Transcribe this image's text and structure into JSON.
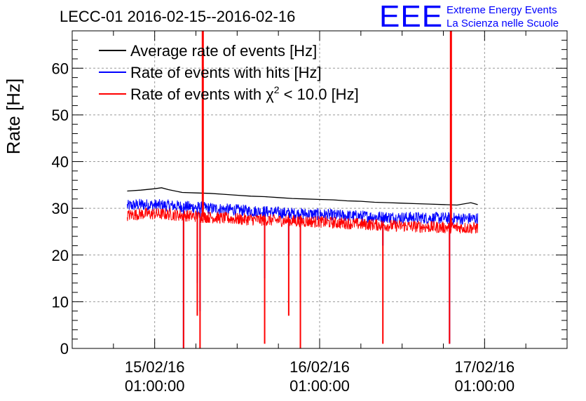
{
  "chart_data": {
    "type": "line",
    "title": "LECC-01 2016-02-15--2016-02-16",
    "ylabel": "Rate [Hz]",
    "xlabel": "",
    "ylim": [
      0,
      68
    ],
    "yticks": [
      0,
      10,
      20,
      30,
      40,
      50,
      60
    ],
    "xlim_hours": [
      -12.0,
      60.0
    ],
    "xticks": [
      {
        "hour": 0,
        "date": "15/02/16",
        "time": "01:00:00"
      },
      {
        "hour": 24,
        "date": "16/02/16",
        "time": "01:00:00"
      },
      {
        "hour": 48,
        "date": "17/02/16",
        "time": "01:00:00"
      }
    ],
    "grid": true,
    "legend_position": "top-left",
    "legend": [
      {
        "prefix": "Average rate of events [Hz]",
        "sup": "",
        "suffix": "",
        "color": "#000000"
      },
      {
        "prefix": "Rate of events with hits [Hz]",
        "sup": "",
        "suffix": "",
        "color": "#0000ff"
      },
      {
        "prefix": "Rate of events with χ",
        "sup": "2",
        "suffix": " < 10.0 [Hz]",
        "color": "#ff0000"
      }
    ],
    "series": [
      {
        "name": "Average rate of events [Hz]",
        "color": "#000000",
        "x_hours": [
          -4,
          -2,
          0,
          1,
          2,
          4,
          6,
          8,
          10,
          12,
          14,
          16,
          18,
          20,
          22,
          24,
          26,
          28,
          30,
          32,
          34,
          36,
          38,
          40,
          42,
          44,
          46,
          46.5,
          47
        ],
        "values": [
          33.7,
          33.9,
          34.2,
          34.4,
          34.0,
          33.4,
          33.3,
          33.2,
          33.0,
          32.8,
          32.6,
          32.5,
          32.3,
          32.1,
          32.0,
          31.9,
          31.8,
          31.6,
          31.5,
          31.3,
          31.2,
          31.1,
          31.0,
          30.9,
          30.8,
          30.7,
          31.2,
          31.0,
          30.8
        ]
      },
      {
        "name": "Rate of events with hits [Hz]",
        "color": "#0000ff",
        "x_hours": [
          -4,
          -2,
          0,
          2,
          4,
          6,
          8,
          10,
          12,
          14,
          16,
          18,
          20,
          22,
          24,
          26,
          28,
          30,
          32,
          34,
          36,
          38,
          40,
          42,
          44,
          46,
          47
        ],
        "values": [
          30.5,
          30.8,
          30.7,
          30.6,
          30.4,
          30.2,
          30.0,
          29.8,
          29.6,
          29.4,
          29.3,
          29.1,
          28.9,
          28.8,
          28.7,
          28.5,
          28.4,
          28.3,
          28.2,
          28.1,
          28.0,
          28.0,
          27.9,
          27.9,
          27.8,
          27.8,
          27.8
        ],
        "dropouts": [
          {
            "hour": 4.2,
            "min": 0
          },
          {
            "hour": 6.2,
            "min": 14
          },
          {
            "hour": 6.6,
            "min": 8
          },
          {
            "hour": 16.0,
            "min": 15
          },
          {
            "hour": 19.5,
            "min": 20
          },
          {
            "hour": 21.2,
            "min": 21
          },
          {
            "hour": 33.2,
            "min": 22
          },
          {
            "hour": 42.9,
            "min": 1
          }
        ]
      },
      {
        "name": "Rate of events with χ2 < 10.0 [Hz]",
        "color": "#ff0000",
        "x_hours": [
          -4,
          -2,
          0,
          2,
          4,
          6,
          8,
          10,
          12,
          14,
          16,
          18,
          20,
          22,
          24,
          26,
          28,
          30,
          32,
          34,
          36,
          38,
          40,
          42,
          44,
          46,
          47
        ],
        "values": [
          28.5,
          28.8,
          28.8,
          28.7,
          28.5,
          28.3,
          28.1,
          27.9,
          27.7,
          27.6,
          27.5,
          27.4,
          27.3,
          27.2,
          27.1,
          26.9,
          26.8,
          26.6,
          26.5,
          26.3,
          26.2,
          26.1,
          26.0,
          25.9,
          25.9,
          25.8,
          25.8
        ],
        "dropouts": [
          {
            "hour": 4.2,
            "min": 0
          },
          {
            "hour": 6.2,
            "min": 7
          },
          {
            "hour": 6.6,
            "min": 0
          },
          {
            "hour": 16.0,
            "min": 1
          },
          {
            "hour": 19.5,
            "min": 7
          },
          {
            "hour": 21.2,
            "min": 0
          },
          {
            "hour": 33.2,
            "min": 1
          },
          {
            "hour": 42.9,
            "min": 1
          }
        ],
        "spikes": [
          {
            "hour": 7.0,
            "max": 68
          },
          {
            "hour": 43.1,
            "max": 68
          }
        ]
      }
    ]
  },
  "logo": {
    "text": "EEE",
    "line1": "Extreme Energy Events",
    "line2": "La Scienza nelle Scuole",
    "color": "#0000ff"
  }
}
